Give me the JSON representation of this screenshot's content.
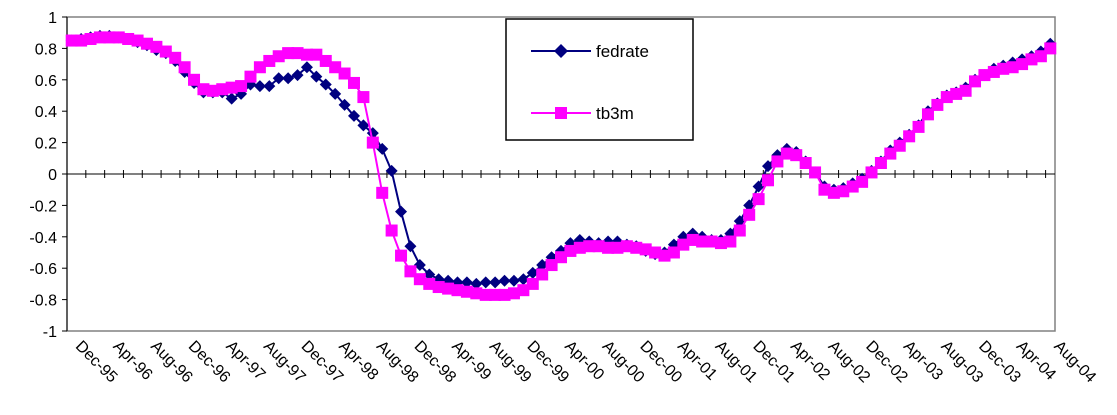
{
  "chart_data": {
    "type": "line",
    "ylim": [
      -1,
      1
    ],
    "y_ticks": [
      "1",
      "0.8",
      "0.6",
      "0.4",
      "0.2",
      "0",
      "-0.2",
      "-0.4",
      "-0.6",
      "-0.8",
      "-1"
    ],
    "x_tick_labels": [
      "Dec-95",
      "Apr-96",
      "Aug-96",
      "Dec-96",
      "Apr-97",
      "Aug-97",
      "Dec-97",
      "Apr-98",
      "Aug-98",
      "Dec-98",
      "Apr-99",
      "Aug-99",
      "Dec-99",
      "Apr-00",
      "Aug-00",
      "Dec-00",
      "Apr-01",
      "Aug-01",
      "Dec-01",
      "Apr-02",
      "Aug-02",
      "Dec-02",
      "Apr-03",
      "Aug-03",
      "Dec-03",
      "Apr-04",
      "Aug-04"
    ],
    "legend_position": "top-center",
    "grid": false,
    "series": [
      {
        "name": "fedrate",
        "color": "#000080",
        "marker": "diamond",
        "values": [
          0.85,
          0.86,
          0.87,
          0.88,
          0.88,
          0.87,
          0.86,
          0.84,
          0.82,
          0.79,
          0.77,
          0.72,
          0.65,
          0.58,
          0.52,
          0.52,
          0.52,
          0.48,
          0.51,
          0.57,
          0.56,
          0.56,
          0.61,
          0.61,
          0.63,
          0.68,
          0.62,
          0.57,
          0.51,
          0.44,
          0.37,
          0.31,
          0.26,
          0.16,
          0.02,
          -0.24,
          -0.46,
          -0.58,
          -0.64,
          -0.67,
          -0.68,
          -0.69,
          -0.69,
          -0.7,
          -0.69,
          -0.69,
          -0.68,
          -0.68,
          -0.67,
          -0.63,
          -0.58,
          -0.53,
          -0.49,
          -0.44,
          -0.42,
          -0.43,
          -0.44,
          -0.43,
          -0.43,
          -0.45,
          -0.46,
          -0.49,
          -0.51,
          -0.5,
          -0.45,
          -0.4,
          -0.38,
          -0.4,
          -0.42,
          -0.42,
          -0.38,
          -0.3,
          -0.2,
          -0.08,
          0.05,
          0.12,
          0.16,
          0.14,
          0.08,
          0.01,
          -0.08,
          -0.1,
          -0.09,
          -0.06,
          -0.03,
          0.02,
          0.08,
          0.15,
          0.2,
          0.25,
          0.31,
          0.4,
          0.45,
          0.5,
          0.52,
          0.55,
          0.6,
          0.63,
          0.67,
          0.69,
          0.71,
          0.73,
          0.75,
          0.78,
          0.83
        ]
      },
      {
        "name": "tb3m",
        "color": "#ff00ff",
        "marker": "square",
        "values": [
          0.85,
          0.85,
          0.86,
          0.87,
          0.87,
          0.87,
          0.86,
          0.85,
          0.83,
          0.81,
          0.78,
          0.74,
          0.68,
          0.6,
          0.54,
          0.53,
          0.54,
          0.55,
          0.56,
          0.62,
          0.68,
          0.72,
          0.75,
          0.77,
          0.77,
          0.76,
          0.76,
          0.72,
          0.68,
          0.64,
          0.58,
          0.49,
          0.2,
          -0.12,
          -0.36,
          -0.52,
          -0.62,
          -0.67,
          -0.7,
          -0.72,
          -0.73,
          -0.74,
          -0.75,
          -0.76,
          -0.77,
          -0.77,
          -0.77,
          -0.76,
          -0.74,
          -0.7,
          -0.64,
          -0.58,
          -0.53,
          -0.49,
          -0.47,
          -0.46,
          -0.46,
          -0.47,
          -0.47,
          -0.46,
          -0.47,
          -0.48,
          -0.5,
          -0.52,
          -0.5,
          -0.45,
          -0.42,
          -0.43,
          -0.43,
          -0.44,
          -0.43,
          -0.36,
          -0.26,
          -0.16,
          -0.04,
          0.08,
          0.13,
          0.12,
          0.07,
          0.01,
          -0.1,
          -0.12,
          -0.11,
          -0.08,
          -0.05,
          0.01,
          0.07,
          0.13,
          0.18,
          0.24,
          0.3,
          0.38,
          0.44,
          0.49,
          0.51,
          0.53,
          0.59,
          0.63,
          0.65,
          0.67,
          0.68,
          0.7,
          0.73,
          0.75,
          0.8
        ]
      }
    ]
  }
}
